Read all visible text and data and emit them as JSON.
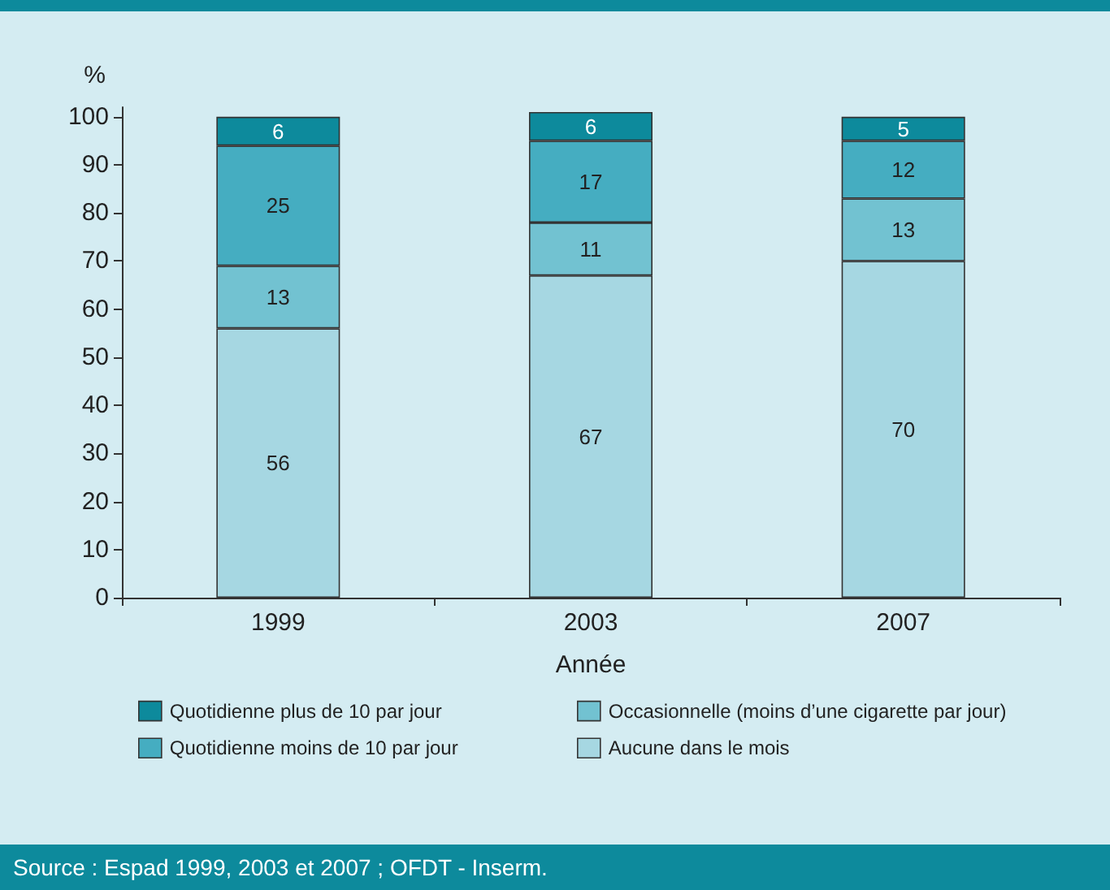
{
  "chart_data": {
    "type": "bar",
    "stacked": true,
    "categories": [
      "1999",
      "2003",
      "2007"
    ],
    "series": [
      {
        "name": "Aucune dans le mois",
        "color": "#a6d7e2",
        "values": [
          56,
          67,
          70
        ]
      },
      {
        "name": "Occasionnelle (moins d’une cigarette par jour)",
        "color": "#72c2d1",
        "values": [
          13,
          11,
          13
        ]
      },
      {
        "name": "Quotidienne moins de 10 par jour",
        "color": "#45adc1",
        "values": [
          25,
          17,
          12
        ]
      },
      {
        "name": "Quotidienne plus de 10 par jour",
        "color": "#0d8a9c",
        "values": [
          6,
          6,
          5
        ]
      }
    ],
    "xlabel": "Année",
    "ylabel": "%",
    "ylim": [
      0,
      102
    ],
    "yticks": [
      0,
      10,
      20,
      30,
      40,
      50,
      60,
      70,
      80,
      90,
      100
    ],
    "data_labels": true,
    "grid": false,
    "legend": "bottom",
    "annotations": [
      "Source : Espad 1999, 2003 et 2007 ; OFDT - Inserm."
    ]
  }
}
